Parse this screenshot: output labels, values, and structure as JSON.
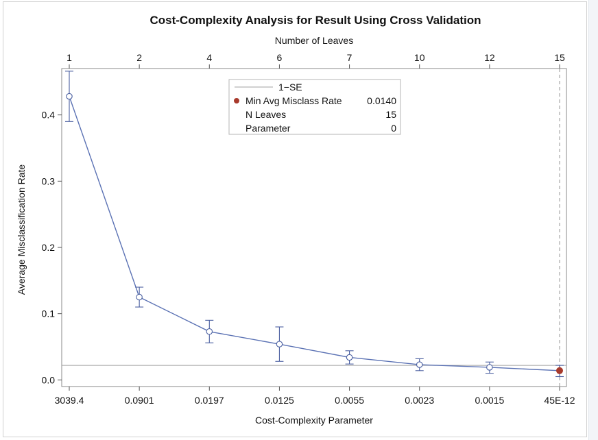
{
  "chart_data": {
    "type": "line",
    "title": "Cost-Complexity Analysis for Result Using Cross Validation",
    "xlabel": "Cost-Complexity Parameter",
    "x2label": "Number of Leaves",
    "ylabel": "Average Misclassification Rate",
    "categories": [
      "3039.4",
      "0.0901",
      "0.0197",
      "0.0125",
      "0.0055",
      "0.0023",
      "0.0015",
      "45E-12"
    ],
    "leaves": [
      "1",
      "2",
      "4",
      "6",
      "7",
      "10",
      "12",
      "15"
    ],
    "series": [
      {
        "values": [
          0.428,
          0.125,
          0.073,
          0.054,
          0.034,
          0.023,
          0.019,
          0.014
        ],
        "lower": [
          0.39,
          0.11,
          0.056,
          0.028,
          0.024,
          0.014,
          0.01,
          0.005
        ],
        "upper": [
          0.466,
          0.14,
          0.09,
          0.08,
          0.044,
          0.032,
          0.027,
          0.022
        ]
      }
    ],
    "one_se_value": 0.022,
    "min_index": 7,
    "yticks": [
      "0.0",
      "0.1",
      "0.2",
      "0.3",
      "0.4"
    ],
    "ylim": [
      -0.01,
      0.47
    ],
    "grid": false,
    "legend": {
      "placement": "top-center",
      "one_se_label": "1−SE",
      "min_label": "Min Avg Misclass Rate",
      "min_value": "0.0140",
      "leaves_label": "N Leaves",
      "leaves_value": "15",
      "param_label": "Parameter",
      "param_value": "0"
    },
    "colors": {
      "line": "#5b72b4",
      "marker": "#4a5fa0",
      "min_marker": "#a83a2c",
      "ref_line": "#a0a0a0",
      "vline": "#b8b8b8"
    }
  }
}
